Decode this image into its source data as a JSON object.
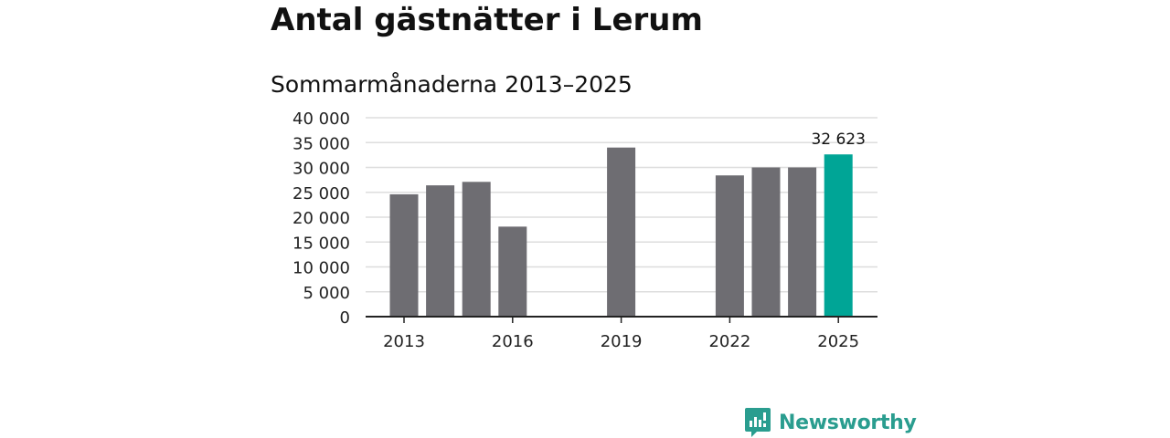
{
  "chart_data": {
    "type": "bar",
    "title": "Antal gästnätter i Lerum",
    "subtitle": "Sommarmånaderna 2013–2025",
    "xlabel": "",
    "ylabel": "",
    "categories": [
      "2013",
      "2014",
      "2015",
      "2016",
      "2017",
      "2018",
      "2019",
      "2020",
      "2021",
      "2022",
      "2023",
      "2024",
      "2025"
    ],
    "values": [
      24600,
      26400,
      27100,
      18100,
      null,
      null,
      34000,
      null,
      null,
      28400,
      30000,
      30000,
      32623
    ],
    "x_tick_labels": [
      "2013",
      "2016",
      "2019",
      "2022",
      "2025"
    ],
    "y_ticks": [
      0,
      5000,
      10000,
      15000,
      20000,
      25000,
      30000,
      35000,
      40000
    ],
    "y_tick_labels": [
      "0",
      "5 000",
      "10 000",
      "15 000",
      "20 000",
      "25 000",
      "30 000",
      "35 000",
      "40 000"
    ],
    "ylim": [
      0,
      40000
    ],
    "grid": true,
    "highlight": {
      "category": "2025",
      "label": "32 623"
    },
    "colors": {
      "bar": "#6e6d72",
      "highlight": "#00a596",
      "grid": "#dddddd",
      "axis": "#222222"
    }
  },
  "brand": {
    "name": "Newsworthy",
    "icon": "newsworthy-logo-icon",
    "color": "#2a9d8f"
  }
}
